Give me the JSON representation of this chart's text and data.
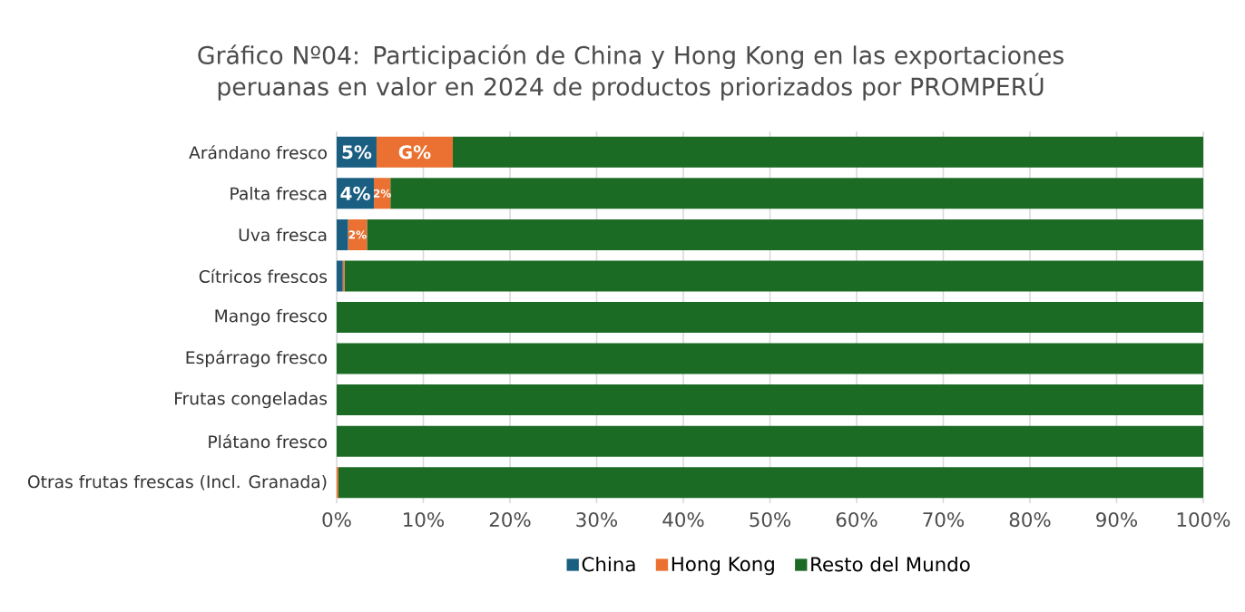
{
  "chart_data": {
    "type": "bar",
    "orientation": "horizontal",
    "stacked": true,
    "title": "Gráfico Nº04: Participación de China y Hong Kong en las exportaciones peruanas en valor en 2024 de productos priorizados por PROMPERÚ",
    "categories": [
      "Arándano fresco",
      "Palta fresca",
      "Uva fresca",
      "Cítricos frescos",
      "Mango fresco",
      "Espárrago fresco",
      "Frutas congeladas",
      "Plátano fresco",
      "Otras frutas frescas (Incl. Granada)"
    ],
    "series": [
      {
        "name": "China",
        "color": "#1a5e82",
        "values": [
          4.6,
          4.3,
          1.3,
          0.7,
          0,
          0,
          0,
          0,
          0
        ],
        "value_labels": [
          "5%",
          "4%",
          null,
          null,
          null,
          null,
          null,
          null,
          null
        ]
      },
      {
        "name": "Hong Kong",
        "color": "#ea7132",
        "values": [
          8.8,
          1.9,
          2.2,
          0.2,
          0,
          0,
          0,
          0,
          0.2
        ],
        "value_labels": [
          "G%",
          "2%",
          "2%",
          null,
          null,
          null,
          null,
          null,
          null
        ]
      },
      {
        "name": "Resto del Mundo",
        "color": "#1b6b24",
        "values": [
          86.6,
          93.8,
          96.5,
          99.1,
          100,
          100,
          100,
          100,
          99.8
        ]
      }
    ],
    "xlim": [
      0,
      100
    ],
    "xticks": [
      {
        "value": 0,
        "label": "0%"
      },
      {
        "value": 10,
        "label": "10%"
      },
      {
        "value": 20,
        "label": "20%"
      },
      {
        "value": 30,
        "label": "30%"
      },
      {
        "value": 40,
        "label": "40%"
      },
      {
        "value": 50,
        "label": "50%"
      },
      {
        "value": 60,
        "label": "60%"
      },
      {
        "value": 70,
        "label": "70%"
      },
      {
        "value": 80,
        "label": "80%"
      },
      {
        "value": 90,
        "label": "90%"
      },
      {
        "value": 100,
        "label": "100%"
      }
    ],
    "grid": "x",
    "legend": "bottom"
  }
}
